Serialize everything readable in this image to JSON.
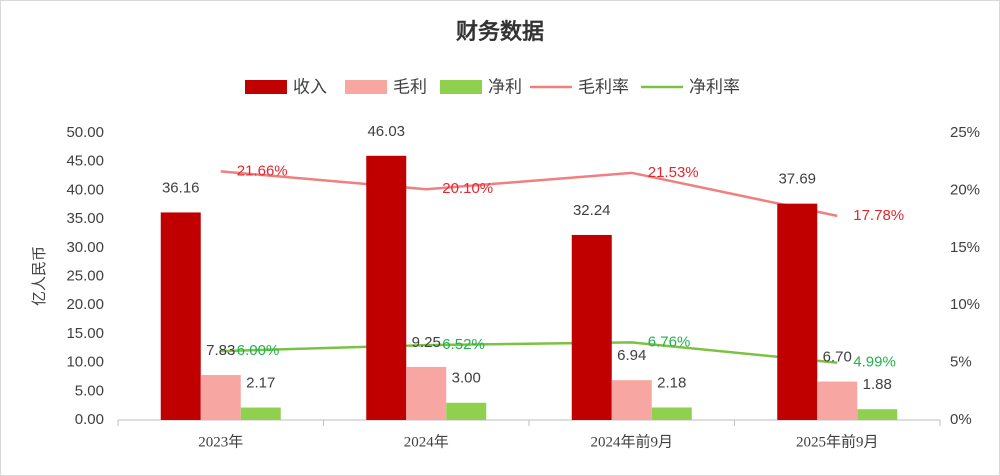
{
  "chart_data": {
    "type": "bar_line",
    "title": "财务数据",
    "y_label": "亿人民币",
    "categories": [
      "2023年",
      "2024年",
      "2024年前9月",
      "2025年前9月"
    ],
    "series": [
      {
        "name": "收入",
        "type": "bar",
        "color": "#c00000",
        "values": [
          36.16,
          46.03,
          32.24,
          37.69
        ],
        "value_labels": [
          "36.16",
          "46.03",
          "32.24",
          "37.69"
        ]
      },
      {
        "name": "毛利",
        "type": "bar",
        "color": "#f7a6a1",
        "values": [
          7.83,
          9.25,
          6.94,
          6.7
        ],
        "value_labels": [
          "7.83",
          "9.25",
          "6.94",
          "6.70"
        ]
      },
      {
        "name": "净利",
        "type": "bar",
        "color": "#8fd14f",
        "values": [
          2.17,
          3.0,
          2.18,
          1.88
        ],
        "value_labels": [
          "2.17",
          "3.00",
          "2.18",
          "1.88"
        ]
      },
      {
        "name": "毛利率",
        "type": "line",
        "axis": "y2",
        "color": "#f08080",
        "label_color": "#e0282e",
        "values": [
          21.66,
          20.1,
          21.53,
          17.78
        ],
        "value_labels": [
          "21.66%",
          "20.10%",
          "21.53%",
          "17.78%"
        ]
      },
      {
        "name": "净利率",
        "type": "line",
        "axis": "y2",
        "color": "#7cc242",
        "label_color": "#22b14c",
        "values": [
          6.0,
          6.52,
          6.76,
          4.99
        ],
        "value_labels": [
          "6.00%",
          "6.52%",
          "6.76%",
          "4.99%"
        ]
      }
    ],
    "ylim": [
      0,
      50
    ],
    "yticks": [
      {
        "value": 0,
        "label": "0.00"
      },
      {
        "value": 5,
        "label": "5.00"
      },
      {
        "value": 10,
        "label": "10.00"
      },
      {
        "value": 15,
        "label": "15.00"
      },
      {
        "value": 20,
        "label": "20.00"
      },
      {
        "value": 25,
        "label": "25.00"
      },
      {
        "value": 30,
        "label": "30.00"
      },
      {
        "value": 35,
        "label": "35.00"
      },
      {
        "value": 40,
        "label": "40.00"
      },
      {
        "value": 45,
        "label": "45.00"
      },
      {
        "value": 50,
        "label": "50.00"
      }
    ],
    "y2lim": [
      0,
      25
    ],
    "y2ticks": [
      {
        "value": 0,
        "label": "0%"
      },
      {
        "value": 5,
        "label": "5%"
      },
      {
        "value": 10,
        "label": "10%"
      },
      {
        "value": 15,
        "label": "15%"
      },
      {
        "value": 20,
        "label": "20%"
      },
      {
        "value": 25,
        "label": "25%"
      }
    ],
    "grid": false,
    "legend": "top"
  }
}
